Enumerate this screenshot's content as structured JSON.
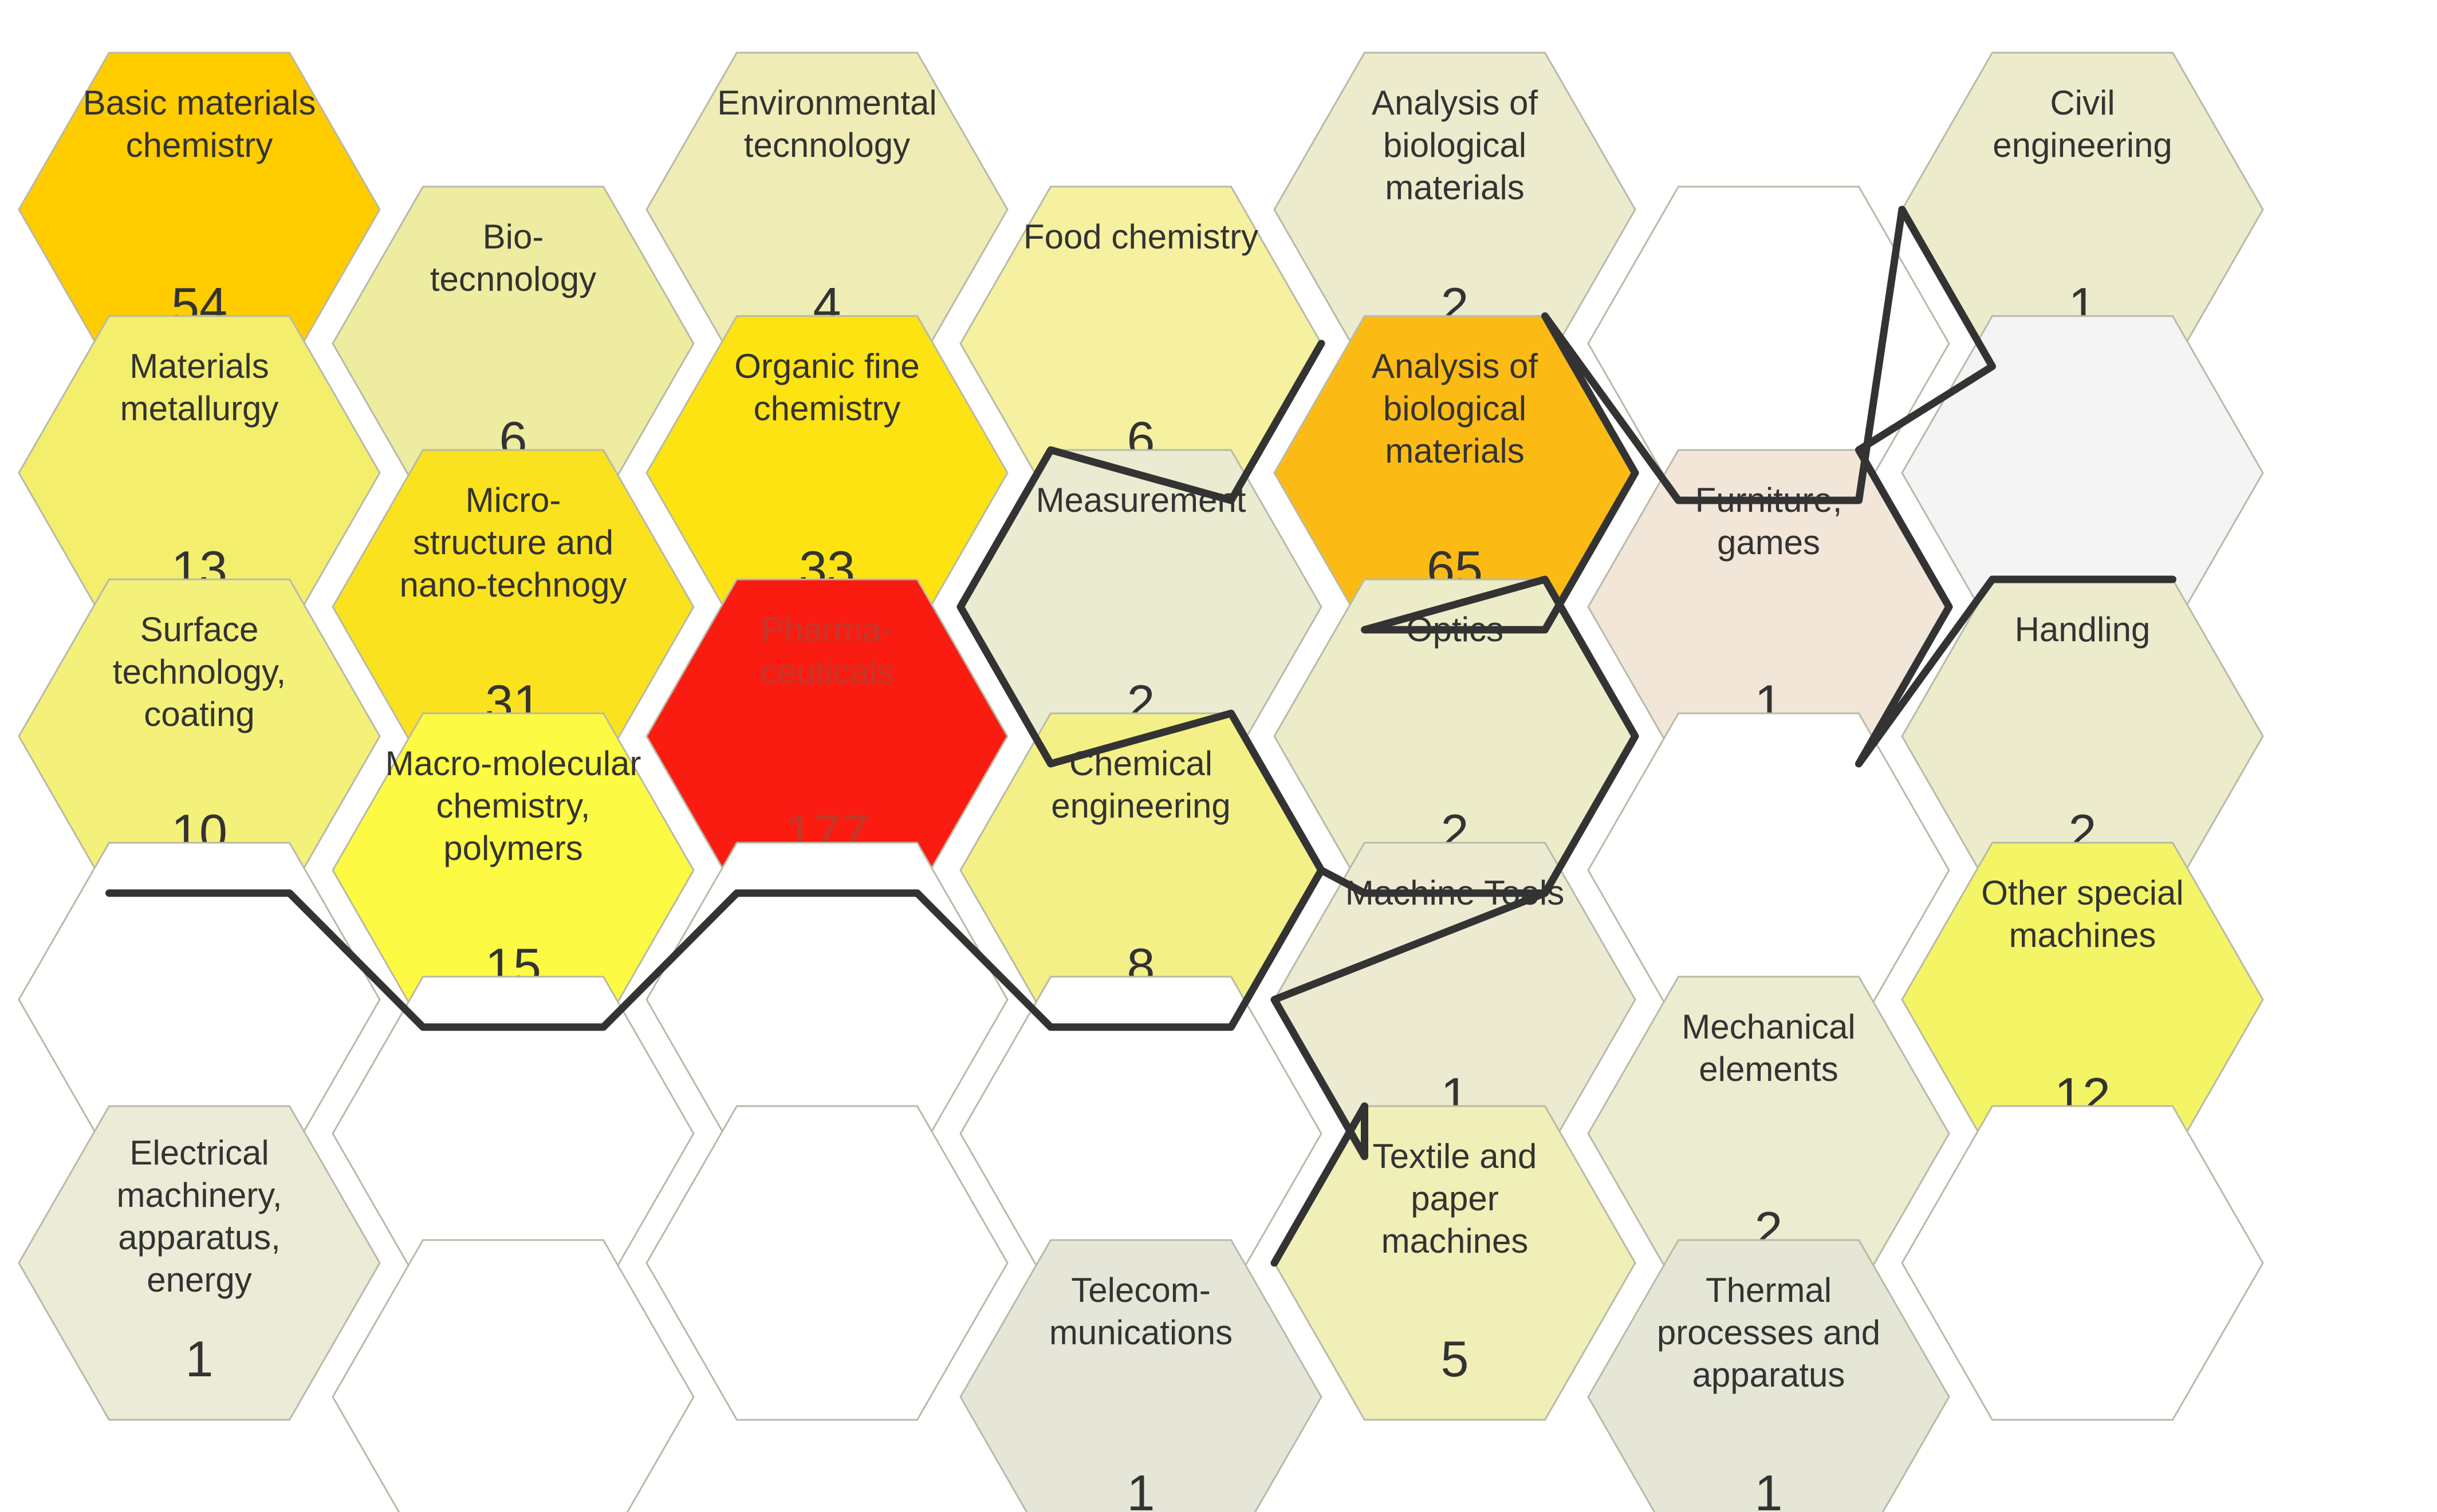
{
  "cells": [
    {
      "id": "r0c0",
      "label": [
        "Basic materials",
        "chemistry"
      ],
      "value": "54",
      "color": "#ffcc00"
    },
    {
      "id": "r0c1",
      "label": [
        "Bio-",
        "tecnnology"
      ],
      "value": "6",
      "color": "#eeeca0"
    },
    {
      "id": "r0c2",
      "label": [
        "Environmental",
        "tecnnology"
      ],
      "value": "4",
      "color": "#efedb5"
    },
    {
      "id": "r0c3",
      "label": [
        "Food chemistry"
      ],
      "value": "6",
      "color": "#f5f1a0"
    },
    {
      "id": "r0c4",
      "label": [
        "Analysis of",
        "biological",
        "materials"
      ],
      "value": "2",
      "color": "#ecebcd"
    },
    {
      "id": "r0c5",
      "label": [],
      "value": "",
      "color": "#ffffff"
    },
    {
      "id": "r0c6",
      "label": [
        "Civil",
        "engineering"
      ],
      "value": "1",
      "color": "#ececcd"
    },
    {
      "id": "r1c0",
      "label": [
        "Materials",
        "metallurgy"
      ],
      "value": "13",
      "color": "#f3ef6d"
    },
    {
      "id": "r1c1",
      "label": [
        "Micro-",
        "structure and",
        "nano-technogy"
      ],
      "value": "31",
      "color": "#fbe21e"
    },
    {
      "id": "r1c2",
      "label": [
        "Organic fine",
        "chemistry"
      ],
      "value": "33",
      "color": "#fde312"
    },
    {
      "id": "r1c3",
      "label": [
        "Measurement"
      ],
      "value": "2",
      "color": "#ebebd2"
    },
    {
      "id": "r1c4",
      "label": [
        "Analysis of",
        "biological",
        "materials"
      ],
      "value": "65",
      "color": "#fcbb14"
    },
    {
      "id": "r1c5",
      "label": [
        "Furniture,",
        "games"
      ],
      "value": "1",
      "color": "#f2e6d8"
    },
    {
      "id": "r1c6",
      "label": [],
      "value": "",
      "color": "#f4f4f4"
    },
    {
      "id": "r2c0",
      "label": [
        "Surface",
        "technology,",
        "coating"
      ],
      "value": "10",
      "color": "#f4f17a"
    },
    {
      "id": "r2c1",
      "label": [
        "Macro-molecular",
        "chemistry,",
        "polymers"
      ],
      "value": "15",
      "color": "#fdfa43"
    },
    {
      "id": "r2c2",
      "label": [
        "Pharma-",
        "ceuticals"
      ],
      "value": "177",
      "color": "#fa1c11"
    },
    {
      "id": "r2c3",
      "label": [
        "Chemical",
        "engineering"
      ],
      "value": "8",
      "color": "#f3f088"
    },
    {
      "id": "r2c4",
      "label": [
        "Optics"
      ],
      "value": "2",
      "color": "#ececc9"
    },
    {
      "id": "r2c5",
      "label": [],
      "value": "",
      "color": "#ffffff"
    },
    {
      "id": "r2c6",
      "label": [
        "Handling"
      ],
      "value": "2",
      "color": "#ecebcc"
    },
    {
      "id": "r3c0",
      "label": [],
      "value": "",
      "color": "#ffffff"
    },
    {
      "id": "r3c1",
      "label": [],
      "value": "",
      "color": "#ffffff"
    },
    {
      "id": "r3c2",
      "label": [],
      "value": "",
      "color": "#ffffff"
    },
    {
      "id": "r3c3",
      "label": [],
      "value": "",
      "color": "#ffffff"
    },
    {
      "id": "r3c4",
      "label": [
        "Machine Tools"
      ],
      "value": "1",
      "color": "#ecebd2"
    },
    {
      "id": "r3c5",
      "label": [
        "Mechanical",
        "elements"
      ],
      "value": "2",
      "color": "#ececd0"
    },
    {
      "id": "r3c6",
      "label": [
        "Other special",
        "machines"
      ],
      "value": "12",
      "color": "#f4f467"
    },
    {
      "id": "r4c0",
      "label": [
        "Electrical",
        "machinery,",
        "apparatus,",
        "energy"
      ],
      "value": "1",
      "color": "#ebebd7"
    },
    {
      "id": "r4c1",
      "label": [],
      "value": "",
      "color": "#ffffff"
    },
    {
      "id": "r4c2",
      "label": [],
      "value": "",
      "color": "#ffffff"
    },
    {
      "id": "r4c3",
      "label": [
        "Telecom-",
        "munications"
      ],
      "value": "1",
      "color": "#e6e6d8"
    },
    {
      "id": "r4c4",
      "label": [
        "Textile and",
        "paper",
        "machines"
      ],
      "value": "5",
      "color": "#efefb7"
    },
    {
      "id": "r4c5",
      "label": [
        "Thermal",
        "processes and",
        "apparatus"
      ],
      "value": "1",
      "color": "#e6e6d7"
    },
    {
      "id": "r4c6",
      "label": [],
      "value": "",
      "color": "#ffffff"
    }
  ],
  "colors": {
    "boundary": "#333333",
    "hex_edge": "#b9b9a8",
    "text": "#333333",
    "pharma_text": "#c0392b"
  }
}
